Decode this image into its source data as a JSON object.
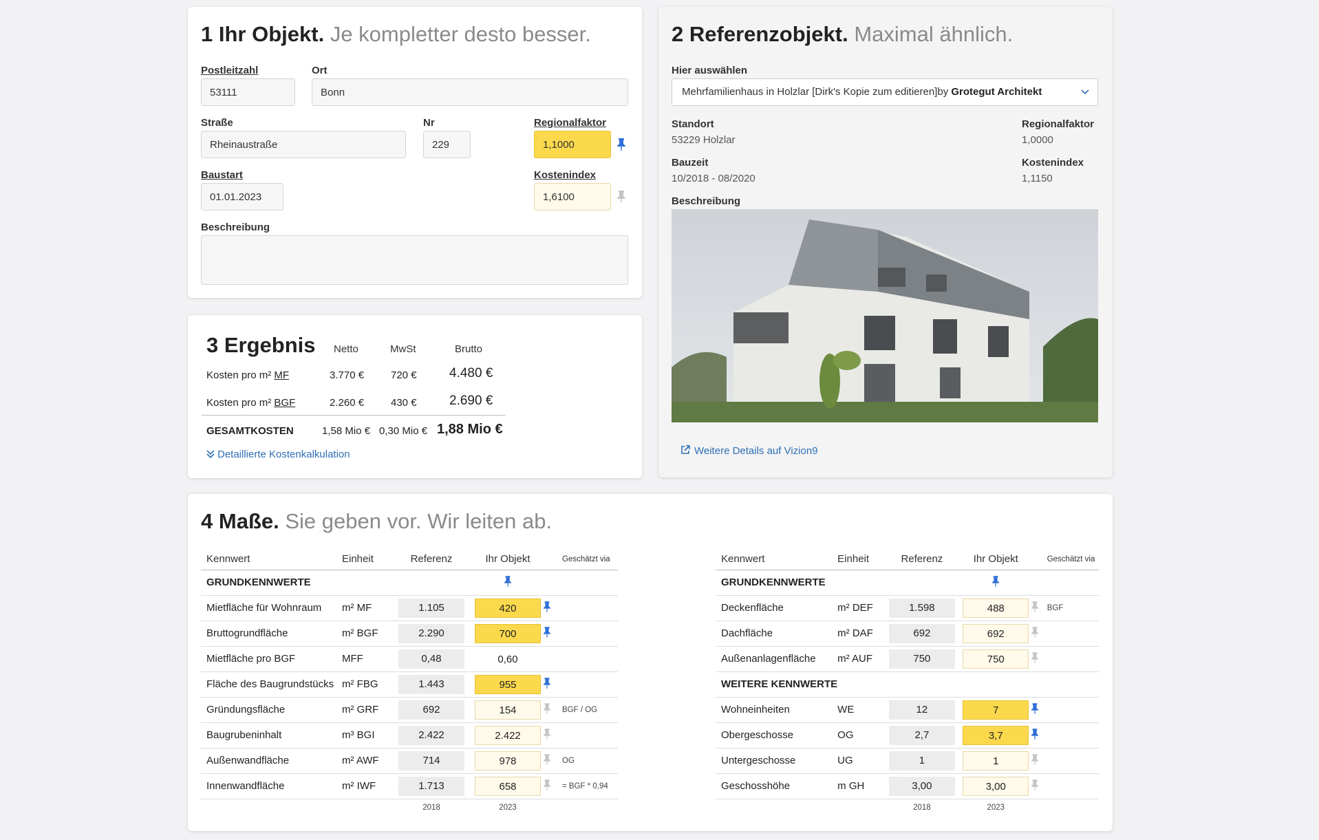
{
  "s1": {
    "num": "1",
    "title": "Ihr Objekt.",
    "subtitle": "Je kompletter desto besser.",
    "plz_label": "Postleitzahl",
    "plz": "53111",
    "ort_label": "Ort",
    "ort": "Bonn",
    "strasse_label": "Straße",
    "strasse": "Rheinaustraße",
    "nr_label": "Nr",
    "nr": "229",
    "regional_label": "Regionalfaktor",
    "regional": "1,1000",
    "baustart_label": "Baustart",
    "baustart": "01.01.2023",
    "kosten_label": "Kostenindex",
    "kosten": "1,6100",
    "beschr_label": "Beschreibung",
    "beschr": ""
  },
  "s2": {
    "num": "2",
    "title": "Referenzobjekt.",
    "subtitle": "Maximal ähnlich.",
    "select_label": "Hier auswählen",
    "select_text": "Mehrfamilienhaus in Holzlar [Dirk's Kopie zum editieren]by ",
    "select_author": "Grotegut Architekt",
    "standort_label": "Standort",
    "standort": "53229 Holzlar",
    "regional_label": "Regionalfaktor",
    "regional": "1,0000",
    "bauzeit_label": "Bauzeit",
    "bauzeit": "10/2018 - 08/2020",
    "kosten_label": "Kostenindex",
    "kosten": "1,1150",
    "beschr_label": "Beschreibung",
    "link": "Weitere Details auf Vizion9"
  },
  "s3": {
    "num": "3",
    "title": "Ergebnis",
    "col_netto": "Netto",
    "col_mwst": "MwSt",
    "col_brutto": "Brutto",
    "rows": [
      {
        "label": "Kosten pro m²",
        "abbr": "MF",
        "netto": "3.770 €",
        "mwst": "720 €",
        "brutto": "4.480 €"
      },
      {
        "label": "Kosten pro m²",
        "abbr": "BGF",
        "netto": "2.260 €",
        "mwst": "430 €",
        "brutto": "2.690 €"
      }
    ],
    "total_label": "GESAMTKOSTEN",
    "total_netto": "1,58 Mio €",
    "total_mwst": "0,30 Mio €",
    "total_brutto": "1,88 Mio €",
    "detail_link": "Detaillierte Kostenkalkulation"
  },
  "s4": {
    "num": "4",
    "title": "Maße.",
    "subtitle": "Sie geben vor. Wir leiten ab.",
    "headers": {
      "kennwert": "Kennwert",
      "einheit": "Einheit",
      "referenz": "Referenz",
      "objekt": "Ihr Objekt",
      "via": "Geschätzt via"
    },
    "left": {
      "group": "GRUNDKENNWERTE",
      "rows": [
        {
          "name": "Mietfläche für Wohnraum",
          "unit": "m² MF",
          "ref": "1.105",
          "obj": "420",
          "style": "y",
          "pin": "blue",
          "via": ""
        },
        {
          "name": "Bruttogrundfläche",
          "unit": "m² BGF",
          "ref": "2.290",
          "obj": "700",
          "style": "y",
          "pin": "blue",
          "via": ""
        },
        {
          "name": "Mietfläche pro BGF",
          "unit": "MFF",
          "ref": "0,48",
          "obj": "0,60",
          "style": "plain",
          "pin": "none",
          "via": ""
        },
        {
          "name": "Fläche des Baugrundstücks",
          "unit": "m² FBG",
          "ref": "1.443",
          "obj": "955",
          "style": "y",
          "pin": "blue",
          "via": ""
        },
        {
          "name": "Gründungsfläche",
          "unit": "m² GRF",
          "ref": "692",
          "obj": "154",
          "style": "ly",
          "pin": "grey",
          "via": "BGF / OG"
        },
        {
          "name": "Baugrubeninhalt",
          "unit": "m³ BGI",
          "ref": "2.422",
          "obj": "2.422",
          "style": "ly",
          "pin": "grey",
          "via": ""
        },
        {
          "name": "Außenwandfläche",
          "unit": "m² AWF",
          "ref": "714",
          "obj": "978",
          "style": "ly",
          "pin": "grey",
          "via": "OG"
        },
        {
          "name": "Innenwandfläche",
          "unit": "m² IWF",
          "ref": "1.713",
          "obj": "658",
          "style": "ly",
          "pin": "grey",
          "via": "= BGF * 0,94"
        }
      ],
      "foot_ref": "2018",
      "foot_obj": "2023"
    },
    "right": {
      "group": "GRUNDKENNWERTE",
      "rows": [
        {
          "name": "Deckenfläche",
          "unit": "m² DEF",
          "ref": "1.598",
          "obj": "488",
          "style": "ly",
          "pin": "grey",
          "via": "BGF"
        },
        {
          "name": "Dachfläche",
          "unit": "m² DAF",
          "ref": "692",
          "obj": "692",
          "style": "ly",
          "pin": "grey",
          "via": ""
        },
        {
          "name": "Außenanlagenfläche",
          "unit": "m² AUF",
          "ref": "750",
          "obj": "750",
          "style": "ly",
          "pin": "grey",
          "via": ""
        }
      ],
      "group2": "WEITERE KENNWERTE",
      "rows2": [
        {
          "name": "Wohneinheiten",
          "unit": "WE",
          "ref": "12",
          "obj": "7",
          "style": "y",
          "pin": "blue",
          "via": ""
        },
        {
          "name": "Obergeschosse",
          "unit": "OG",
          "ref": "2,7",
          "obj": "3,7",
          "style": "y",
          "pin": "blue",
          "via": ""
        },
        {
          "name": "Untergeschosse",
          "unit": "UG",
          "ref": "1",
          "obj": "1",
          "style": "ly",
          "pin": "grey",
          "via": ""
        },
        {
          "name": "Geschosshöhe",
          "unit": "m GH",
          "ref": "3,00",
          "obj": "3,00",
          "style": "ly",
          "pin": "grey",
          "via": ""
        }
      ],
      "foot_ref": "2018",
      "foot_obj": "2023"
    }
  },
  "colors": {
    "accent": "#2f6fb5",
    "highlight": "#fcd94c",
    "pin_blue": "#2f6fd8",
    "pin_grey": "#c4c4c4"
  }
}
